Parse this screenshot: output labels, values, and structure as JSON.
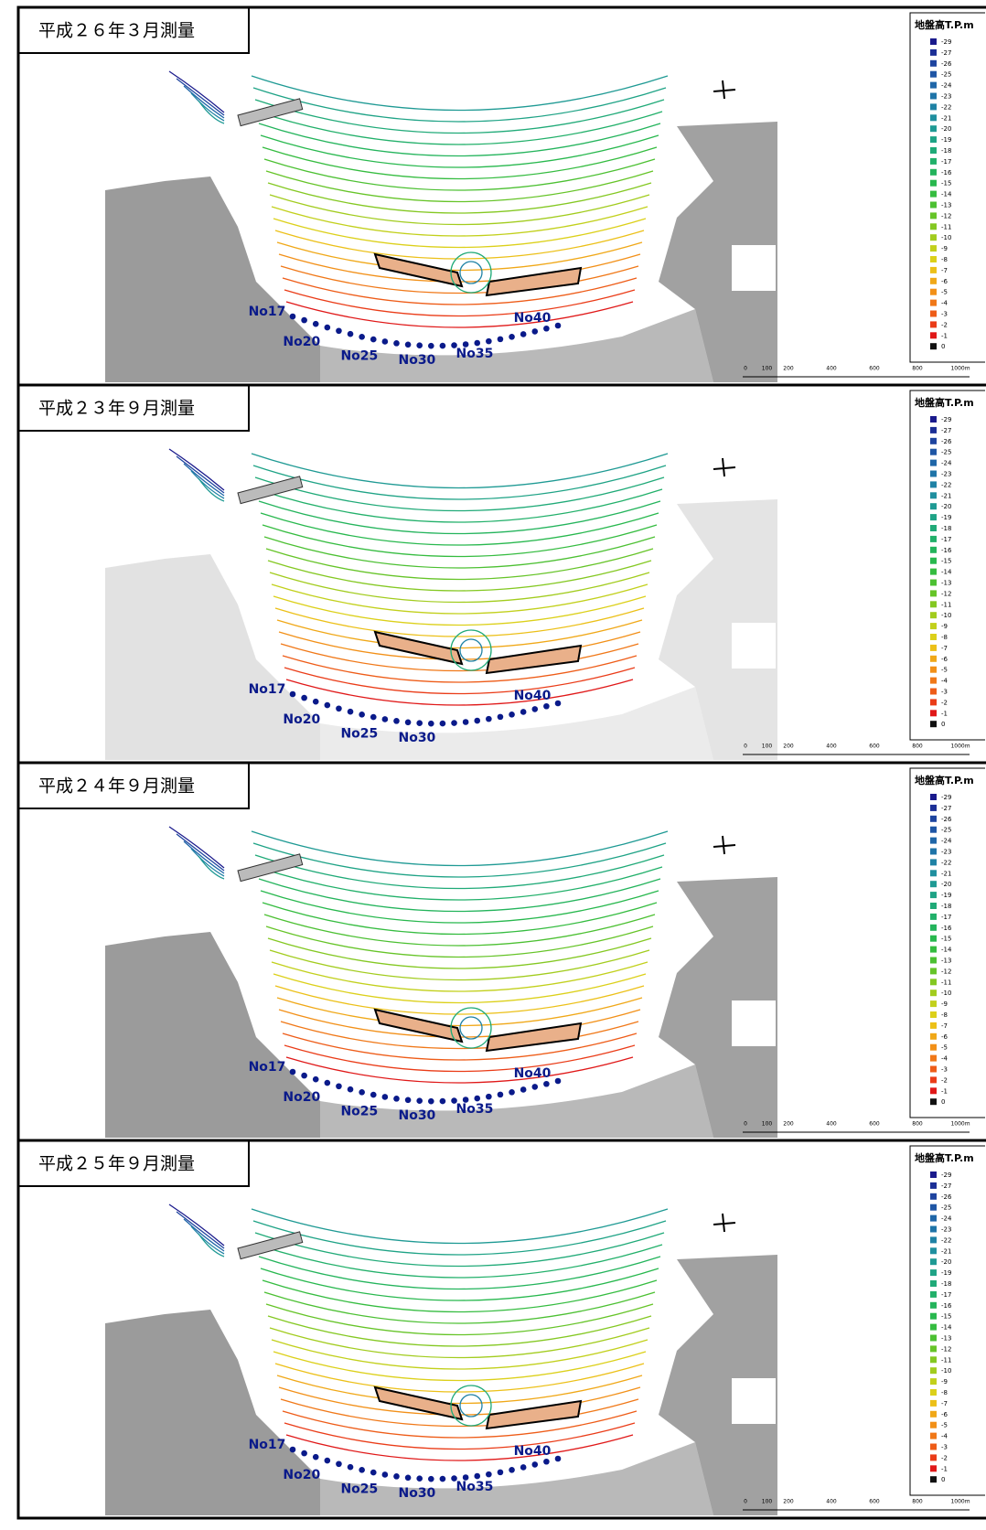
{
  "panels": [
    {
      "title": "平成２６年３月測量",
      "stations": [
        "No17",
        "No20",
        "No25",
        "No30",
        "No35",
        "No40"
      ]
    },
    {
      "title": "平成２３年９月測量",
      "stations": [
        "No17",
        "No20",
        "No25",
        "No30",
        "No40"
      ]
    },
    {
      "title": "平成２４年９月測量",
      "stations": [
        "No17",
        "No20",
        "No25",
        "No30",
        "No35",
        "No40"
      ]
    },
    {
      "title": "平成２５年９月測量",
      "stations": [
        "No17",
        "No20",
        "No25",
        "No30",
        "No35",
        "No40"
      ]
    }
  ],
  "legend": {
    "title": "地盤高T.P.m",
    "items": [
      {
        "label": "-29",
        "color": "#1a1a8c"
      },
      {
        "label": "-27",
        "color": "#1c2f96"
      },
      {
        "label": "-26",
        "color": "#1e449f"
      },
      {
        "label": "-25",
        "color": "#1f56a5"
      },
      {
        "label": "-24",
        "color": "#1f66a8"
      },
      {
        "label": "-23",
        "color": "#1f74a8"
      },
      {
        "label": "-22",
        "color": "#1f82a5"
      },
      {
        "label": "-21",
        "color": "#1f8f9f"
      },
      {
        "label": "-20",
        "color": "#1f9a94"
      },
      {
        "label": "-19",
        "color": "#1fa386"
      },
      {
        "label": "-18",
        "color": "#20aa78"
      },
      {
        "label": "-17",
        "color": "#22b06a"
      },
      {
        "label": "-16",
        "color": "#24b45c"
      },
      {
        "label": "-15",
        "color": "#28b84e"
      },
      {
        "label": "-14",
        "color": "#35bc40"
      },
      {
        "label": "-13",
        "color": "#4cc032"
      },
      {
        "label": "-12",
        "color": "#66c428"
      },
      {
        "label": "-11",
        "color": "#84c822"
      },
      {
        "label": "-10",
        "color": "#a2cc1e"
      },
      {
        "label": "-9",
        "color": "#c2d01c"
      },
      {
        "label": "-8",
        "color": "#dcd01a"
      },
      {
        "label": "-7",
        "color": "#ecc018"
      },
      {
        "label": "-6",
        "color": "#f0a818"
      },
      {
        "label": "-5",
        "color": "#f29018"
      },
      {
        "label": "-4",
        "color": "#f07818"
      },
      {
        "label": "-3",
        "color": "#ee5c18"
      },
      {
        "label": "-2",
        "color": "#ea3c18"
      },
      {
        "label": "-1",
        "color": "#e01818"
      },
      {
        "label": "0",
        "color": "#111111"
      }
    ]
  },
  "scale_labels": [
    "0",
    "100",
    "200",
    "400",
    "600",
    "800",
    "1000m"
  ]
}
